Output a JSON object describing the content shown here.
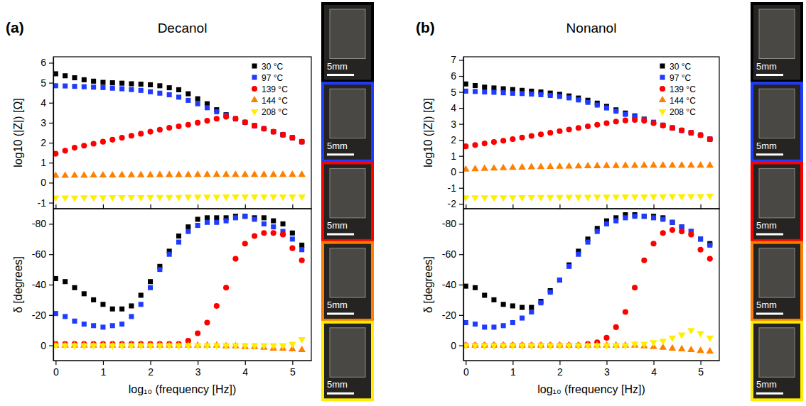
{
  "chart_data": [
    {
      "type": "scatter",
      "title": "Decanol",
      "panel_label": "(a)",
      "y_label": "log10 (|Z|) [Ω]",
      "x": [
        0,
        0.2,
        0.4,
        0.6,
        0.8,
        1.0,
        1.2,
        1.4,
        1.6,
        1.8,
        2.0,
        2.2,
        2.4,
        2.6,
        2.8,
        3.0,
        3.2,
        3.4,
        3.6,
        3.8,
        4.0,
        4.2,
        4.4,
        4.6,
        4.8,
        5.0,
        5.2
      ],
      "xlim": [
        -0.05,
        5.4
      ],
      "xticks": [
        0,
        1,
        2,
        3,
        4,
        5
      ],
      "ylim": [
        -1.3,
        6.3
      ],
      "yticks": [
        -1,
        0,
        1,
        2,
        3,
        4,
        5,
        6
      ],
      "tick_labels": "y",
      "legend": "upper right",
      "series": [
        {
          "name": "30 °C",
          "color": "#000000",
          "marker": "square",
          "values": [
            5.45,
            5.35,
            5.25,
            5.15,
            5.08,
            5.02,
            5.0,
            4.98,
            4.95,
            4.93,
            4.9,
            4.85,
            4.75,
            4.65,
            4.45,
            4.2,
            3.95,
            3.65,
            3.4,
            3.2,
            3.02,
            2.85,
            2.7,
            2.55,
            2.4,
            2.25,
            2.05
          ]
        },
        {
          "name": "97 °C",
          "color": "#1f3bff",
          "marker": "square",
          "values": [
            4.85,
            4.84,
            4.82,
            4.8,
            4.78,
            4.76,
            4.73,
            4.7,
            4.66,
            4.62,
            4.55,
            4.48,
            4.4,
            4.28,
            4.12,
            3.95,
            3.75,
            3.55,
            3.38,
            3.2,
            3.02,
            2.85,
            2.7,
            2.55,
            2.4,
            2.25,
            2.05
          ]
        },
        {
          "name": "139 °C",
          "color": "#ff0000",
          "marker": "circle",
          "values": [
            1.45,
            1.6,
            1.75,
            1.85,
            1.95,
            2.05,
            2.15,
            2.25,
            2.35,
            2.45,
            2.55,
            2.65,
            2.75,
            2.82,
            2.9,
            3.0,
            3.1,
            3.2,
            3.3,
            3.2,
            3.02,
            2.85,
            2.7,
            2.55,
            2.4,
            2.25,
            2.05
          ]
        },
        {
          "name": "144 °C",
          "color": "#ff8000",
          "marker": "triangle-up",
          "values": [
            0.35,
            0.35,
            0.36,
            0.36,
            0.37,
            0.37,
            0.37,
            0.38,
            0.38,
            0.38,
            0.38,
            0.39,
            0.39,
            0.39,
            0.39,
            0.4,
            0.4,
            0.4,
            0.4,
            0.4,
            0.4,
            0.4,
            0.4,
            0.4,
            0.4,
            0.4,
            0.4
          ]
        },
        {
          "name": "208 °C",
          "color": "#ffee00",
          "marker": "triangle-down",
          "values": [
            -0.75,
            -0.75,
            -0.75,
            -0.74,
            -0.74,
            -0.74,
            -0.73,
            -0.73,
            -0.73,
            -0.73,
            -0.72,
            -0.72,
            -0.72,
            -0.72,
            -0.71,
            -0.71,
            -0.71,
            -0.71,
            -0.7,
            -0.7,
            -0.7,
            -0.7,
            -0.7,
            -0.7,
            -0.7,
            -0.7,
            -0.7
          ]
        }
      ]
    },
    {
      "type": "scatter",
      "x_label": "log₁₀ (frequency [Hz])",
      "y_label": "δ [degrees]",
      "x": [
        0,
        0.2,
        0.4,
        0.6,
        0.8,
        1.0,
        1.2,
        1.4,
        1.6,
        1.8,
        2.0,
        2.2,
        2.4,
        2.6,
        2.8,
        3.0,
        3.2,
        3.4,
        3.6,
        3.8,
        4.0,
        4.2,
        4.4,
        4.6,
        4.8,
        5.0,
        5.2
      ],
      "xlim": [
        -0.05,
        5.4
      ],
      "xticks": [
        0,
        1,
        2,
        3,
        4,
        5
      ],
      "ylim": [
        10,
        -90
      ],
      "yticks": [
        0,
        -20,
        -40,
        -60,
        -80
      ],
      "series": [
        {
          "color": "#000000",
          "marker": "square",
          "values": [
            -44,
            -42,
            -38,
            -34,
            -30,
            -27,
            -24,
            -24,
            -26,
            -33,
            -42,
            -52,
            -62,
            -72,
            -78,
            -83,
            -84,
            -84,
            -84,
            -85,
            -85,
            -84,
            -84,
            -82,
            -80,
            -74,
            -66
          ]
        },
        {
          "color": "#1f3bff",
          "marker": "square",
          "values": [
            -21,
            -19,
            -16,
            -14,
            -13,
            -12,
            -13,
            -14,
            -19,
            -27,
            -38,
            -50,
            -60,
            -68,
            -75,
            -79,
            -81,
            -81,
            -82,
            -84,
            -85,
            -83,
            -80,
            -78,
            -75,
            -70,
            -63
          ]
        },
        {
          "color": "#ff0000",
          "marker": "circle",
          "values": [
            -1,
            -1,
            -1,
            -1,
            -1,
            -1,
            -1,
            -1,
            -1,
            -1,
            -1,
            -1,
            -1,
            -1,
            -3,
            -8,
            -15,
            -26,
            -38,
            -57,
            -67,
            -72,
            -74,
            -74,
            -73,
            -64,
            -56
          ]
        },
        {
          "color": "#ff8000",
          "marker": "triangle-up",
          "values": [
            0,
            0,
            0,
            0,
            0,
            0,
            0,
            0,
            0,
            0,
            0,
            0,
            0,
            0,
            0,
            0,
            0,
            0,
            0.5,
            0.5,
            1,
            1,
            1.5,
            2,
            2,
            2.5,
            3
          ]
        },
        {
          "color": "#ffee00",
          "marker": "triangle-down",
          "values": [
            0,
            0,
            0,
            0,
            0,
            0,
            0,
            0,
            0,
            0,
            0,
            0,
            0,
            0,
            0,
            0,
            0,
            0,
            0,
            0,
            0,
            0,
            0,
            0,
            0,
            -1,
            -4
          ]
        }
      ]
    },
    {
      "type": "scatter",
      "title": "Nonanol",
      "panel_label": "(b)",
      "y_label": "log10 (|Z|) [Ω]",
      "x": [
        0,
        0.2,
        0.4,
        0.6,
        0.8,
        1.0,
        1.2,
        1.4,
        1.6,
        1.8,
        2.0,
        2.2,
        2.4,
        2.6,
        2.8,
        3.0,
        3.2,
        3.4,
        3.6,
        3.8,
        4.0,
        4.2,
        4.4,
        4.6,
        4.8,
        5.0,
        5.2
      ],
      "xlim": [
        -0.05,
        5.4
      ],
      "xticks": [
        0,
        1,
        2,
        3,
        4,
        5
      ],
      "ylim": [
        -2.3,
        7.2
      ],
      "yticks": [
        -2,
        -1,
        0,
        1,
        2,
        3,
        4,
        5,
        6,
        7
      ],
      "tick_labels": "y",
      "legend": "upper right",
      "series": [
        {
          "name": "30 °C",
          "color": "#000000",
          "marker": "square",
          "values": [
            5.5,
            5.4,
            5.3,
            5.25,
            5.2,
            5.15,
            5.1,
            5.05,
            5.0,
            4.93,
            4.85,
            4.75,
            4.62,
            4.48,
            4.3,
            4.1,
            3.88,
            3.68,
            3.5,
            3.3,
            3.1,
            2.92,
            2.75,
            2.6,
            2.45,
            2.3,
            2.05
          ]
        },
        {
          "name": "97 °C",
          "color": "#1f3bff",
          "marker": "square",
          "values": [
            5.05,
            5.03,
            5.0,
            4.98,
            4.95,
            4.92,
            4.9,
            4.87,
            4.83,
            4.78,
            4.72,
            4.63,
            4.5,
            4.35,
            4.18,
            4.0,
            3.8,
            3.6,
            3.45,
            3.28,
            3.1,
            2.92,
            2.75,
            2.6,
            2.45,
            2.3,
            2.05
          ]
        },
        {
          "name": "139 °C",
          "color": "#ff0000",
          "marker": "circle",
          "values": [
            1.6,
            1.68,
            1.78,
            1.87,
            1.95,
            2.05,
            2.15,
            2.25,
            2.35,
            2.45,
            2.55,
            2.65,
            2.75,
            2.85,
            2.95,
            3.05,
            3.15,
            3.22,
            3.25,
            3.2,
            3.05,
            2.9,
            2.75,
            2.6,
            2.45,
            2.3,
            2.05
          ]
        },
        {
          "name": "144 °C",
          "color": "#ff8000",
          "marker": "triangle-up",
          "values": [
            0.15,
            0.18,
            0.2,
            0.22,
            0.24,
            0.26,
            0.28,
            0.3,
            0.31,
            0.32,
            0.33,
            0.34,
            0.35,
            0.36,
            0.37,
            0.38,
            0.38,
            0.39,
            0.39,
            0.4,
            0.4,
            0.4,
            0.4,
            0.4,
            0.4,
            0.4,
            0.4
          ]
        },
        {
          "name": "208 °C",
          "color": "#ffee00",
          "marker": "triangle-down",
          "values": [
            -1.6,
            -1.6,
            -1.6,
            -1.6,
            -1.6,
            -1.6,
            -1.59,
            -1.59,
            -1.58,
            -1.58,
            -1.58,
            -1.57,
            -1.57,
            -1.57,
            -1.56,
            -1.56,
            -1.56,
            -1.55,
            -1.55,
            -1.55,
            -1.54,
            -1.54,
            -1.53,
            -1.53,
            -1.52,
            -1.52,
            -1.5
          ]
        }
      ]
    },
    {
      "type": "scatter",
      "x_label": "log₁₀ (frequency [Hz])",
      "y_label": "δ [degrees]",
      "x": [
        0,
        0.2,
        0.4,
        0.6,
        0.8,
        1.0,
        1.2,
        1.4,
        1.6,
        1.8,
        2.0,
        2.2,
        2.4,
        2.6,
        2.8,
        3.0,
        3.2,
        3.4,
        3.6,
        3.8,
        4.0,
        4.2,
        4.4,
        4.6,
        4.8,
        5.0,
        5.2
      ],
      "xlim": [
        -0.05,
        5.4
      ],
      "xticks": [
        0,
        1,
        2,
        3,
        4,
        5
      ],
      "ylim": [
        10,
        -90
      ],
      "yticks": [
        0,
        -20,
        -40,
        -60,
        -80
      ],
      "series": [
        {
          "color": "#000000",
          "marker": "square",
          "values": [
            -39,
            -38,
            -33,
            -30,
            -27,
            -26,
            -25,
            -25,
            -29,
            -36,
            -43,
            -53,
            -62,
            -70,
            -77,
            -82,
            -84,
            -86,
            -86,
            -85,
            -85,
            -84,
            -81,
            -78,
            -75,
            -70,
            -67
          ]
        },
        {
          "color": "#1f3bff",
          "marker": "square",
          "values": [
            -15,
            -14,
            -12,
            -12,
            -13,
            -15,
            -18,
            -22,
            -28,
            -35,
            -43,
            -52,
            -60,
            -68,
            -75,
            -80,
            -82,
            -84,
            -85,
            -85,
            -84,
            -83,
            -81,
            -78,
            -75,
            -70,
            -66
          ]
        },
        {
          "color": "#ff0000",
          "marker": "circle",
          "values": [
            0,
            0,
            0,
            0,
            0,
            0,
            0,
            0,
            0,
            0,
            0,
            0,
            0,
            -1,
            -2,
            -5,
            -12,
            -22,
            -38,
            -56,
            -67,
            -74,
            -76,
            -75,
            -73,
            -63,
            -57
          ]
        },
        {
          "color": "#ff8000",
          "marker": "triangle-up",
          "values": [
            0,
            0,
            0,
            0,
            0,
            0,
            0,
            0,
            0,
            0,
            0,
            0,
            0,
            0,
            0,
            0,
            0,
            0,
            0,
            0.5,
            1,
            1.5,
            2,
            2.5,
            3,
            3.5,
            4
          ]
        },
        {
          "color": "#ffee00",
          "marker": "triangle-down",
          "values": [
            0,
            0,
            0,
            0,
            0,
            0,
            0,
            0,
            0,
            0,
            0,
            0,
            0,
            0,
            0,
            0,
            0,
            0,
            -1,
            -1,
            -2,
            -3,
            -5,
            -7,
            -10,
            -8,
            -5
          ]
        }
      ]
    }
  ],
  "photos": [
    {
      "tiles": [
        {
          "color": "#000000",
          "scale_label": "5mm"
        },
        {
          "color": "#1f3bff",
          "scale_label": "5mm"
        },
        {
          "color": "#ff0000",
          "scale_label": "5mm"
        },
        {
          "color": "#ff8000",
          "scale_label": "5mm"
        },
        {
          "color": "#ffee00",
          "scale_label": "5mm"
        }
      ]
    },
    {
      "tiles": [
        {
          "color": "#000000",
          "scale_label": "5mm"
        },
        {
          "color": "#1f3bff",
          "scale_label": "5mm"
        },
        {
          "color": "#ff0000",
          "scale_label": "5mm"
        },
        {
          "color": "#ff8000",
          "scale_label": "5mm"
        },
        {
          "color": "#ffee00",
          "scale_label": "5mm"
        }
      ]
    }
  ]
}
